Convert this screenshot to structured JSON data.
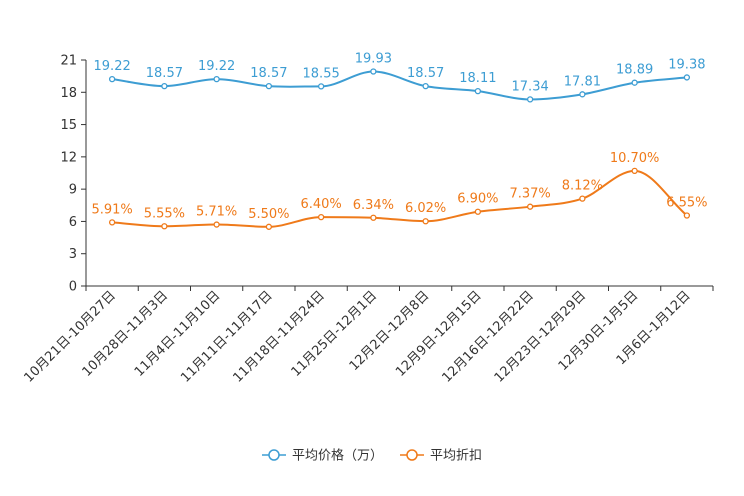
{
  "chart_data": {
    "type": "line",
    "title": "",
    "xlabel": "",
    "ylabel": "",
    "ylim": [
      0,
      21
    ],
    "yticks": [
      0,
      3,
      6,
      9,
      12,
      15,
      18,
      21
    ],
    "ytick_labels": [
      "0",
      "3",
      "6",
      "9",
      "12",
      "15",
      "18",
      "21"
    ],
    "categories": [
      "10月21日-10月27日",
      "10月28日-11月3日",
      "11月4日-11月10日",
      "11月11日-11月17日",
      "11月18日-11月24日",
      "11月25日-12月1日",
      "12月2日-12月8日",
      "12月9日-12月15日",
      "12月16日-12月22日",
      "12月23日-12月29日",
      "12月30日-1月5日",
      "1月6日-1月12日"
    ],
    "series": [
      {
        "name": "平均价格（万）",
        "color": "#3d9dd3",
        "values": [
          19.22,
          18.57,
          19.22,
          18.57,
          18.55,
          19.93,
          18.57,
          18.11,
          17.34,
          17.81,
          18.89,
          19.38
        ],
        "labels": [
          "19.22",
          "18.57",
          "19.22",
          "18.57",
          "18.55",
          "19.93",
          "18.57",
          "18.11",
          "17.34",
          "17.81",
          "18.89",
          "19.38"
        ]
      },
      {
        "name": "平均折扣",
        "color": "#ef7a1a",
        "values": [
          5.91,
          5.55,
          5.71,
          5.5,
          6.4,
          6.34,
          6.02,
          6.9,
          7.37,
          8.12,
          10.7,
          6.55
        ],
        "labels": [
          "5.91%",
          "5.55%",
          "5.71%",
          "5.50%",
          "6.40%",
          "6.34%",
          "6.02%",
          "6.90%",
          "7.37%",
          "8.12%",
          "10.70%",
          "6.55%"
        ]
      }
    ],
    "legend_position": "bottom-center",
    "grid": false
  }
}
